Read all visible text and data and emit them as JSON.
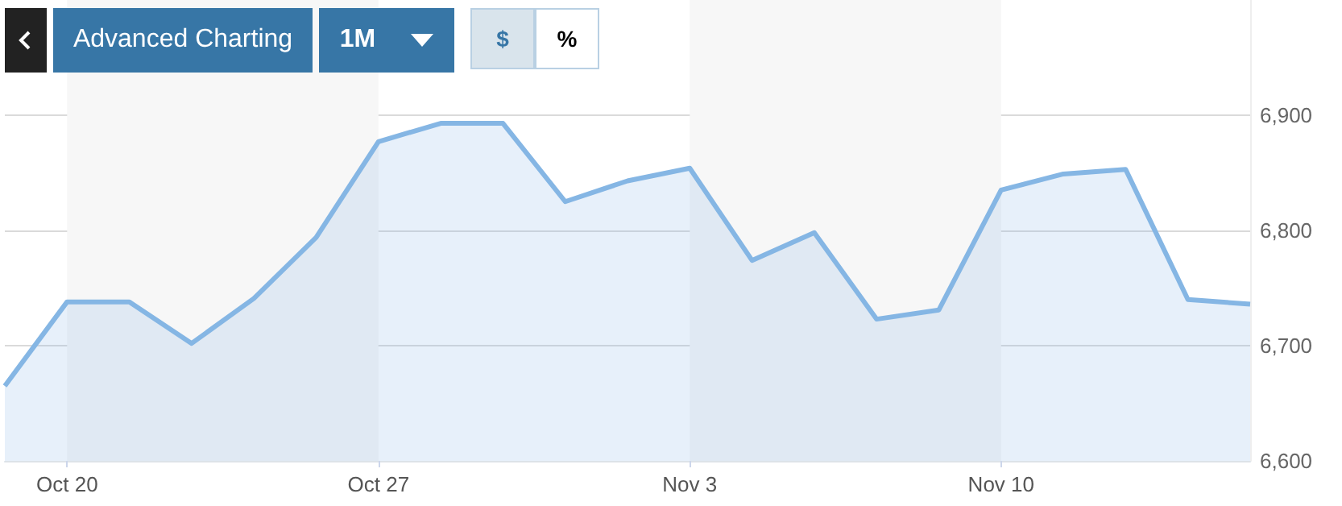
{
  "chart_data": {
    "type": "area",
    "categories": [
      null,
      "Oct 20",
      null,
      null,
      null,
      null,
      "Oct 27",
      null,
      null,
      null,
      null,
      "Nov 3",
      null,
      null,
      null,
      null,
      "Nov 10",
      null,
      null,
      null,
      null
    ],
    "series": [
      {
        "color": "#85b6e4",
        "values": [
          6665,
          6738,
          6738,
          6702,
          6741,
          6794,
          6877,
          6893,
          6893,
          6825,
          6843,
          6854,
          6774,
          6798,
          6723,
          6731,
          6835,
          6849,
          6853,
          6740,
          6736
        ]
      }
    ],
    "ylim": [
      6600,
      7000
    ],
    "yticks": [
      {
        "value": 6600,
        "label": "6,600"
      },
      {
        "value": 6700,
        "label": "6,700"
      },
      {
        "value": 6800,
        "label": "6,800"
      },
      {
        "value": 6900,
        "label": "6,900"
      }
    ],
    "grid": "y",
    "bands": [
      {
        "axis": "x",
        "from": "Oct 20",
        "to": "Oct 27",
        "color": "#f7f7f7"
      },
      {
        "axis": "x",
        "from": "Nov 3",
        "to": "Nov 10",
        "color": "#f7f7f7"
      }
    ],
    "annotations": [
      "Advanced Charting",
      "1M",
      "$",
      "%"
    ]
  }
}
